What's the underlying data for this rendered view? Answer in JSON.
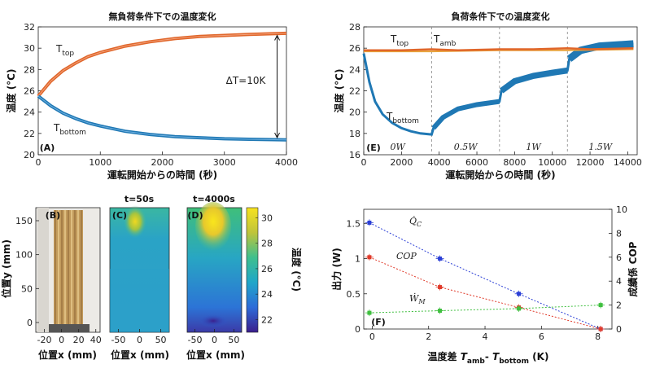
{
  "chart_data": [
    {
      "panel": "(A)",
      "type": "line",
      "title": "無負荷条件下での温度変化",
      "xlabel": "運転開始からの時間 (秒)",
      "ylabel": "温度 (°C)",
      "xlim": [
        0,
        4000
      ],
      "ylim": [
        20,
        32
      ],
      "xticks": [
        "0",
        "1000",
        "2000",
        "3000",
        "4000"
      ],
      "yticks": [
        "20",
        "22",
        "24",
        "26",
        "28",
        "30",
        "32"
      ],
      "series": [
        {
          "name": "T_top",
          "label_main": "T",
          "label_sub": "top",
          "color": "#e0662a",
          "x": [
            0,
            200,
            400,
            600,
            800,
            1000,
            1400,
            1800,
            2200,
            2600,
            3000,
            3400,
            4000
          ],
          "y": [
            25.5,
            26.9,
            27.9,
            28.6,
            29.2,
            29.6,
            30.2,
            30.6,
            30.9,
            31.1,
            31.2,
            31.3,
            31.4
          ]
        },
        {
          "name": "T_bottom",
          "label_main": "T",
          "label_sub": "bottom",
          "color": "#1f78b4",
          "x": [
            0,
            200,
            400,
            600,
            800,
            1000,
            1400,
            1800,
            2200,
            2600,
            3000,
            3400,
            4000
          ],
          "y": [
            25.5,
            24.6,
            23.9,
            23.4,
            23.0,
            22.7,
            22.2,
            21.9,
            21.7,
            21.6,
            21.5,
            21.45,
            21.4
          ]
        }
      ],
      "annotation": "ΔT=10K"
    },
    {
      "panel": "(E)",
      "type": "line",
      "title": "負荷条件下での温度変化",
      "xlabel": "運転開始からの時間 (秒)",
      "ylabel": "温度 (°C)",
      "xlim": [
        0,
        14500
      ],
      "ylim": [
        16,
        28
      ],
      "xticks": [
        "0",
        "2000",
        "4000",
        "6000",
        "8000",
        "10000",
        "12000",
        "14000"
      ],
      "yticks": [
        "16",
        "18",
        "20",
        "22",
        "24",
        "26",
        "28"
      ],
      "series": [
        {
          "name": "T_top",
          "label_main": "T",
          "label_sub": "top",
          "color": "#e0662a",
          "x": [
            0,
            2000,
            3600,
            5000,
            7200,
            9000,
            10800,
            12000,
            14300
          ],
          "y": [
            25.8,
            25.8,
            25.9,
            25.8,
            25.9,
            25.9,
            26.0,
            25.9,
            26.0
          ]
        },
        {
          "name": "T_amb",
          "label_main": "T",
          "label_sub": "amb",
          "color": "#e8a23a",
          "x": [
            0,
            3600,
            7200,
            10800,
            14300
          ],
          "y": [
            25.7,
            25.7,
            25.8,
            25.8,
            25.9
          ]
        },
        {
          "name": "T_bottom",
          "label_main": "T",
          "label_sub": "bottom",
          "color": "#1f78b4",
          "x": [
            0,
            300,
            600,
            1000,
            1500,
            2000,
            2500,
            3000,
            3600,
            3700,
            4200,
            5000,
            6000,
            7200,
            7300,
            8000,
            9000,
            10000,
            10800,
            10900,
            11500,
            12500,
            14300
          ],
          "y": [
            25.5,
            22.8,
            21.0,
            19.8,
            19.0,
            18.5,
            18.2,
            18.0,
            17.9,
            18.5,
            19.5,
            20.3,
            20.7,
            21.0,
            22.0,
            22.9,
            23.4,
            23.7,
            23.9,
            25.0,
            25.8,
            26.2,
            26.4
          ]
        }
      ],
      "regions": [
        {
          "label": "0W",
          "x_start": 0,
          "x_end": 3600
        },
        {
          "label": "0.5W",
          "x_start": 3600,
          "x_end": 7200
        },
        {
          "label": "1W",
          "x_start": 7200,
          "x_end": 10800
        },
        {
          "label": "1.5W",
          "x_start": 10800,
          "x_end": 14500
        }
      ]
    },
    {
      "panel": "(F)",
      "type": "line",
      "xlabel_main": "温度差",
      "xlabel_expr": {
        "t1": "T",
        "s1": "amb",
        "dash": "- ",
        "t2": "T",
        "s2": "bottom",
        "unit": " (K)"
      },
      "ylabel_left": "出力 (W)",
      "ylabel_right": "成績係 COP",
      "xlim": [
        -0.3,
        8.5
      ],
      "ylim_left": [
        0,
        1.7
      ],
      "ylim_right": [
        0,
        10
      ],
      "xticks": [
        "0",
        "2",
        "4",
        "6",
        "8"
      ],
      "yticks_left": [
        "0",
        "0.5",
        "1",
        "1.5"
      ],
      "yticks_right": [
        "0",
        "2",
        "4",
        "6",
        "8",
        "10"
      ],
      "series": [
        {
          "name": "Q̇_C",
          "axis": "left",
          "color": "#2b3fd6",
          "x": [
            -0.1,
            2.4,
            5.2,
            8.1
          ],
          "y": [
            1.51,
            1.0,
            0.5,
            0.0
          ]
        },
        {
          "name": "COP",
          "axis": "right",
          "color": "#e03a2a",
          "x": [
            -0.1,
            2.4,
            5.2,
            8.1
          ],
          "y": [
            6.0,
            3.5,
            1.8,
            0.0
          ]
        },
        {
          "name": "Ẇ_M",
          "axis": "left",
          "color": "#3fbf3f",
          "x": [
            -0.1,
            2.4,
            5.2,
            8.1
          ],
          "y": [
            0.23,
            0.26,
            0.29,
            0.34
          ]
        }
      ]
    },
    {
      "panel": "(B)(C)(D)",
      "type": "heatmap",
      "ylabel": "位置y (mm)",
      "xlabel": "位置x (mm)",
      "yticks": [
        "0",
        "50",
        "100",
        "150"
      ],
      "xticks_B": [
        "-20",
        "0",
        "20",
        "40"
      ],
      "xticks_CD": [
        "-50",
        "0",
        "50"
      ],
      "titles": [
        "t=50s",
        "t=4000s"
      ],
      "colorbar_label": "温度 (°C)",
      "colorbar_ticks": [
        "22",
        "24",
        "26",
        "28",
        "30"
      ],
      "colorbar_range": [
        21,
        30.8
      ]
    }
  ],
  "panel_labels": {
    "A": "(A)",
    "B": "(B)",
    "C": "(C)",
    "D": "(D)",
    "E": "(E)",
    "F": "(F)"
  }
}
